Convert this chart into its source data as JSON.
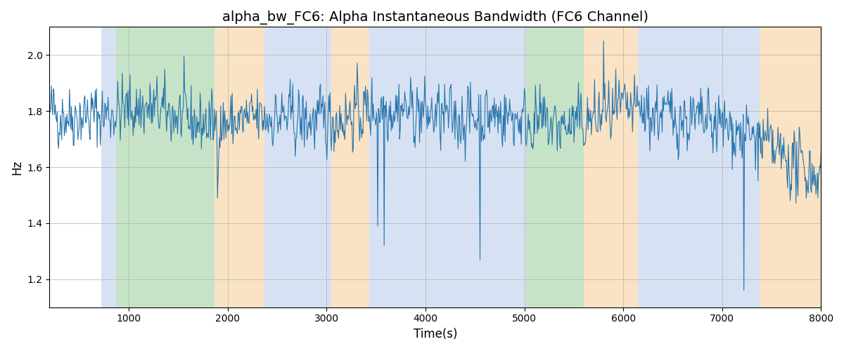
{
  "title": "alpha_bw_FC6: Alpha Instantaneous Bandwidth (FC6 Channel)",
  "xlabel": "Time(s)",
  "ylabel": "Hz",
  "xlim": [
    200,
    8000
  ],
  "ylim": [
    1.1,
    2.1
  ],
  "yticks": [
    1.2,
    1.4,
    1.6,
    1.8,
    2.0
  ],
  "xticks": [
    1000,
    2000,
    3000,
    4000,
    5000,
    6000,
    7000,
    8000
  ],
  "line_color": "#2976AE",
  "line_width": 0.8,
  "background_color": "#ffffff",
  "grid_color": "#b0b0b0",
  "bands": [
    {
      "xmin": 720,
      "xmax": 870,
      "color": "#AEC6E8",
      "alpha": 0.5
    },
    {
      "xmin": 870,
      "xmax": 1870,
      "color": "#90C990",
      "alpha": 0.5
    },
    {
      "xmin": 1870,
      "xmax": 2370,
      "color": "#F5C98A",
      "alpha": 0.5
    },
    {
      "xmin": 2370,
      "xmax": 3050,
      "color": "#AEC6E8",
      "alpha": 0.5
    },
    {
      "xmin": 3050,
      "xmax": 3430,
      "color": "#F5C98A",
      "alpha": 0.5
    },
    {
      "xmin": 3430,
      "xmax": 4530,
      "color": "#AEC6E8",
      "alpha": 0.5
    },
    {
      "xmin": 4530,
      "xmax": 4700,
      "color": "#AEC6E8",
      "alpha": 0.5
    },
    {
      "xmin": 4700,
      "xmax": 5020,
      "color": "#AEC6E8",
      "alpha": 0.5
    },
    {
      "xmin": 5020,
      "xmax": 5600,
      "color": "#90C990",
      "alpha": 0.5
    },
    {
      "xmin": 5600,
      "xmax": 6150,
      "color": "#F5C98A",
      "alpha": 0.5
    },
    {
      "xmin": 6150,
      "xmax": 7050,
      "color": "#AEC6E8",
      "alpha": 0.5
    },
    {
      "xmin": 7050,
      "xmax": 7380,
      "color": "#AEC6E8",
      "alpha": 0.5
    },
    {
      "xmin": 7380,
      "xmax": 8050,
      "color": "#F5C98A",
      "alpha": 0.5
    }
  ],
  "seed": 42,
  "n_points": 1200,
  "t_start": 200,
  "t_end": 8000,
  "base_value": 1.78,
  "noise_std": 0.055,
  "title_fontsize": 14
}
